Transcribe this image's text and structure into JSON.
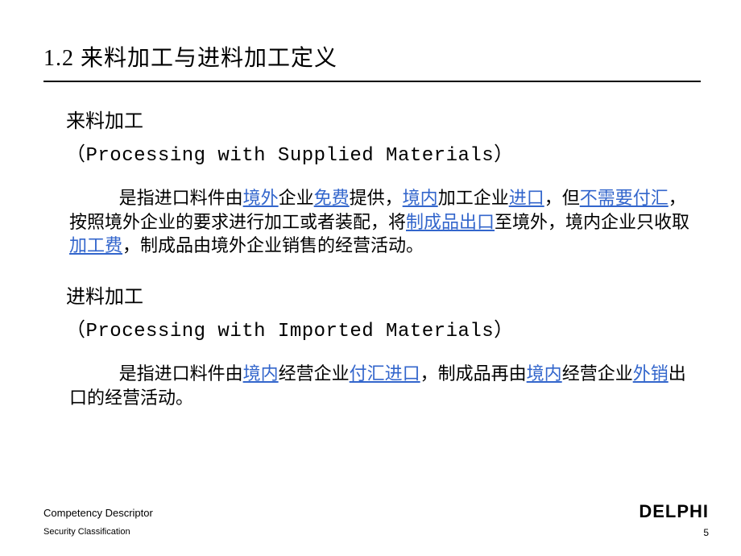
{
  "title": "1.2 来料加工与进料加工定义",
  "section1": {
    "heading": "来料加工",
    "sub": "（Processing with Supplied Materials）",
    "body_parts": [
      {
        "t": "是指进口料件由"
      },
      {
        "t": "境外",
        "link": true
      },
      {
        "t": "企业"
      },
      {
        "t": "免费",
        "link": true
      },
      {
        "t": "提供，"
      },
      {
        "t": "境内",
        "link": true
      },
      {
        "t": "加工企业"
      },
      {
        "t": "进口",
        "link": true
      },
      {
        "t": "，但"
      },
      {
        "t": "不需要付汇",
        "link": true
      },
      {
        "t": "，按照境外企业的要求进行加工或者装配，将"
      },
      {
        "t": "制成品出口",
        "link": true
      },
      {
        "t": "至境外，境内企业只收取"
      },
      {
        "t": "加工费",
        "link": true
      },
      {
        "t": "，制成品由境外企业销售的经营活动。"
      }
    ]
  },
  "section2": {
    "heading": "进料加工",
    "sub": "（Processing with Imported Materials）",
    "body_parts": [
      {
        "t": "是指进口料件由"
      },
      {
        "t": "境内",
        "link": true
      },
      {
        "t": "经营企业"
      },
      {
        "t": "付汇进口",
        "link": true
      },
      {
        "t": "，制成品再由"
      },
      {
        "t": "境内",
        "link": true
      },
      {
        "t": "经营企业"
      },
      {
        "t": "外销",
        "link": true
      },
      {
        "t": "出口的经营活动。"
      }
    ]
  },
  "footer": {
    "line1": "Competency Descriptor",
    "line2": "Security Classification"
  },
  "logo": "DELPHI",
  "page_num": "5",
  "colors": {
    "link": "#3366cc",
    "text": "#000000",
    "bg": "#ffffff"
  }
}
